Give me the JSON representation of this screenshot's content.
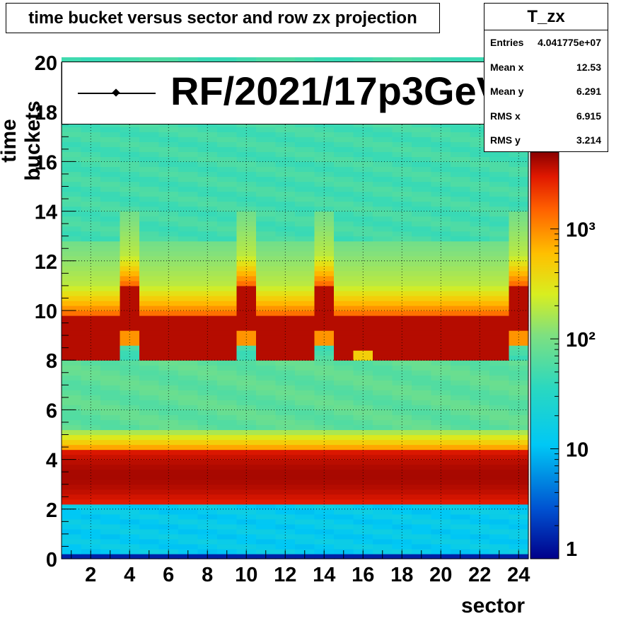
{
  "chart_data": {
    "type": "heatmap",
    "title": "time bucket versus sector and row zx projection",
    "xlabel": "sector",
    "ylabel": "time buckets",
    "xlim": [
      0.5,
      24.5
    ],
    "ylim": [
      0,
      20
    ],
    "x_ticks": [
      2,
      4,
      6,
      8,
      10,
      12,
      14,
      16,
      18,
      20,
      22,
      24
    ],
    "y_ticks": [
      0,
      2,
      4,
      6,
      8,
      10,
      12,
      14,
      16,
      18,
      20
    ],
    "z_scale": "log",
    "z_range": [
      1,
      5000
    ],
    "z_ticks": [
      "1",
      "10",
      "10²",
      "10³"
    ],
    "grid": true,
    "legend": {
      "label": "RF/2021/17p3GeV",
      "placement": "top"
    },
    "stats": {
      "name": "T_zx",
      "rows": [
        {
          "label": "Entries",
          "value": "4.041775e+07"
        },
        {
          "label": "Mean x",
          "value": "12.53"
        },
        {
          "label": "Mean y",
          "value": "6.291"
        },
        {
          "label": "RMS x",
          "value": "6.915"
        },
        {
          "label": "RMS y",
          "value": "3.214"
        }
      ]
    },
    "shifted_sectors": [
      4,
      10,
      14,
      24
    ],
    "mid_sector": 16,
    "bands": {
      "main_peak_y": [
        2.2,
        4.5
      ],
      "normal_peak_y": [
        8.1,
        9.8
      ],
      "shifted_peak_y": [
        9.2,
        11.0
      ]
    }
  }
}
